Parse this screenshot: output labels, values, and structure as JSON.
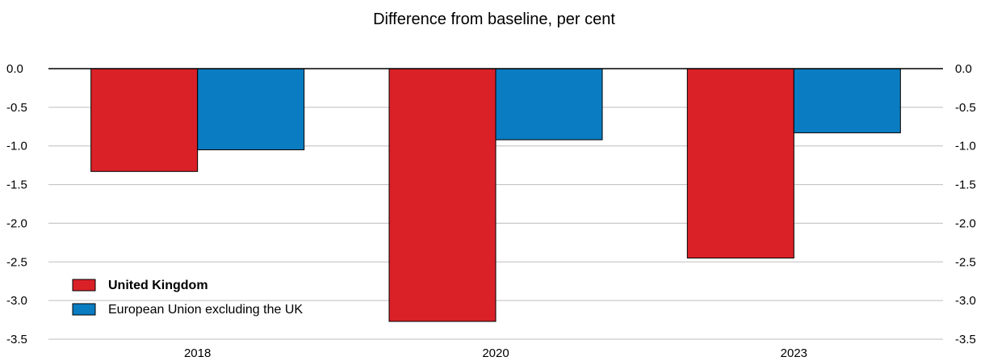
{
  "chart_data": {
    "type": "bar",
    "title": "Difference from baseline, per cent",
    "categories": [
      "2018",
      "2020",
      "2023"
    ],
    "series": [
      {
        "name": "United Kingdom",
        "values": [
          -1.33,
          -3.27,
          -2.45
        ],
        "color": "#da2128"
      },
      {
        "name": "European Union excluding the UK",
        "values": [
          -1.05,
          -0.92,
          -0.83
        ],
        "color": "#0a7cc1"
      }
    ],
    "ylim": [
      -3.5,
      0.0
    ],
    "yticks": [
      "0.0",
      "-0.5",
      "-1.0",
      "-1.5",
      "-2.0",
      "-2.5",
      "-3.0",
      "-3.5"
    ],
    "ytick_values": [
      0.0,
      -0.5,
      -1.0,
      -1.5,
      -2.0,
      -2.5,
      -3.0,
      -3.5
    ],
    "grid": true,
    "legend_position": "bottom-left",
    "dual_y_axis": true
  }
}
